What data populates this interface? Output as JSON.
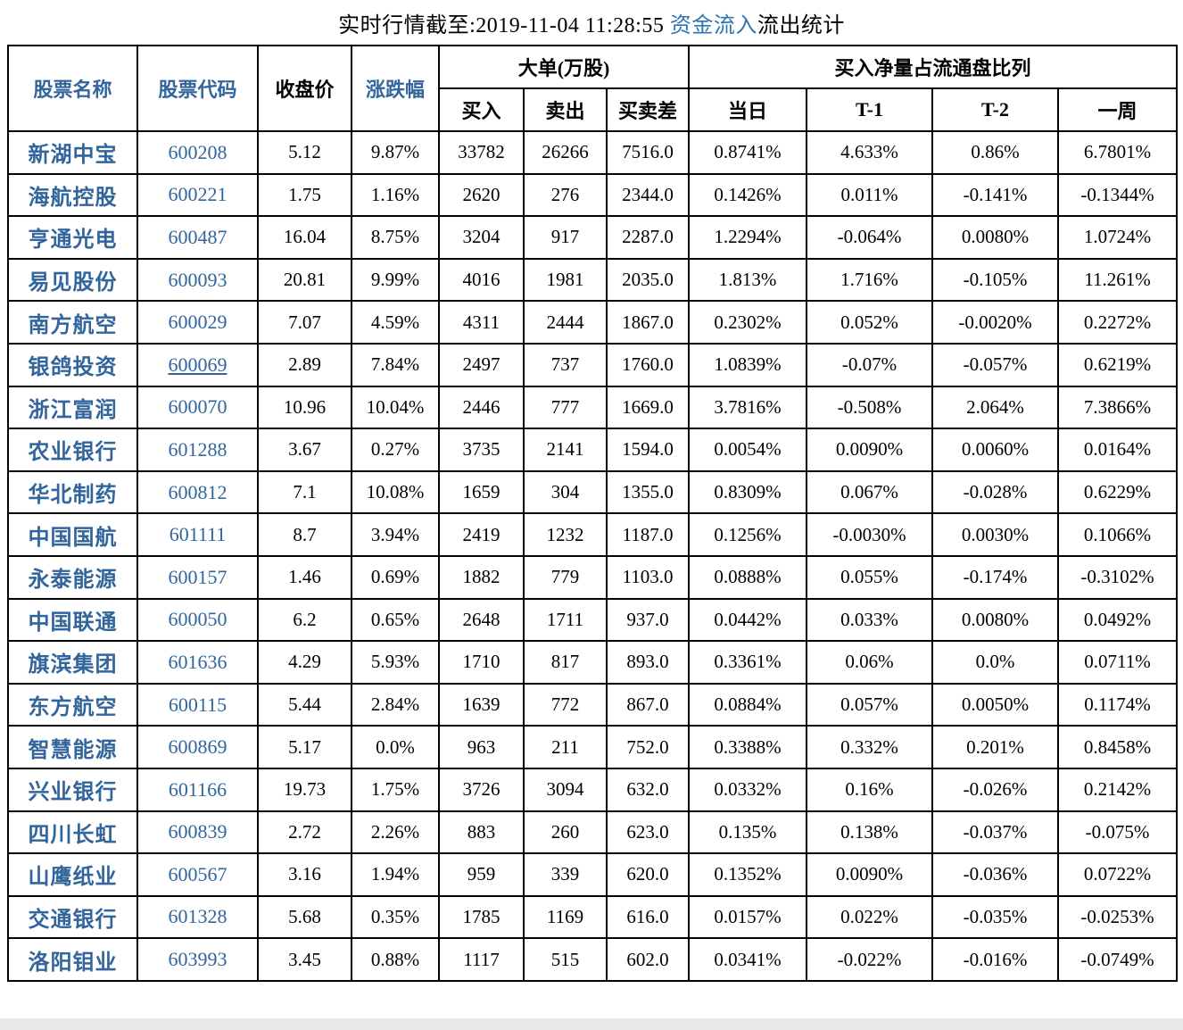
{
  "title": {
    "prefix": "实时行情截至:2019-11-04 11:28:55 ",
    "link": "资金流入",
    "suffix": "流出统计"
  },
  "colors": {
    "table_link_blue": "#31659C",
    "title_link_blue": "#2E74B5",
    "border": "#000000",
    "page_bg": "#ffffff",
    "bottom_strip": "#e9e9e9"
  },
  "table": {
    "headers": {
      "stock_name": "股票名称",
      "stock_code": "股票代码",
      "close_price": "收盘价",
      "change_pct": "涨跌幅",
      "big_order_group": "大单(万股)",
      "buy": "买入",
      "sell": "卖出",
      "diff": "买卖差",
      "net_ratio_group": "买入净量占流通盘比列",
      "today": "当日",
      "t1": "T-1",
      "t2": "T-2",
      "week": "一周"
    },
    "rows": [
      {
        "name": "新湖中宝",
        "code": "600208",
        "close": "5.12",
        "change": "9.87%",
        "buy": "33782",
        "sell": "26266",
        "diff": "7516.0",
        "today": "0.8741%",
        "t1": "4.633%",
        "t2": "0.86%",
        "week": "6.7801%"
      },
      {
        "name": "海航控股",
        "code": "600221",
        "close": "1.75",
        "change": "1.16%",
        "buy": "2620",
        "sell": "276",
        "diff": "2344.0",
        "today": "0.1426%",
        "t1": "0.011%",
        "t2": "-0.141%",
        "week": "-0.1344%"
      },
      {
        "name": "亨通光电",
        "code": "600487",
        "close": "16.04",
        "change": "8.75%",
        "buy": "3204",
        "sell": "917",
        "diff": "2287.0",
        "today": "1.2294%",
        "t1": "-0.064%",
        "t2": "0.0080%",
        "week": "1.0724%"
      },
      {
        "name": "易见股份",
        "code": "600093",
        "close": "20.81",
        "change": "9.99%",
        "buy": "4016",
        "sell": "1981",
        "diff": "2035.0",
        "today": "1.813%",
        "t1": "1.716%",
        "t2": "-0.105%",
        "week": "11.261%"
      },
      {
        "name": "南方航空",
        "code": "600029",
        "close": "7.07",
        "change": "4.59%",
        "buy": "4311",
        "sell": "2444",
        "diff": "1867.0",
        "today": "0.2302%",
        "t1": "0.052%",
        "t2": "-0.0020%",
        "week": "0.2272%"
      },
      {
        "name": "银鸽投资",
        "code": "600069",
        "code_underline": true,
        "close": "2.89",
        "change": "7.84%",
        "buy": "2497",
        "sell": "737",
        "diff": "1760.0",
        "today": "1.0839%",
        "t1": "-0.07%",
        "t2": "-0.057%",
        "week": "0.6219%"
      },
      {
        "name": "浙江富润",
        "code": "600070",
        "close": "10.96",
        "change": "10.04%",
        "buy": "2446",
        "sell": "777",
        "diff": "1669.0",
        "today": "3.7816%",
        "t1": "-0.508%",
        "t2": "2.064%",
        "week": "7.3866%"
      },
      {
        "name": "农业银行",
        "code": "601288",
        "close": "3.67",
        "change": "0.27%",
        "buy": "3735",
        "sell": "2141",
        "diff": "1594.0",
        "today": "0.0054%",
        "t1": "0.0090%",
        "t2": "0.0060%",
        "week": "0.0164%"
      },
      {
        "name": "华北制药",
        "code": "600812",
        "close": "7.1",
        "change": "10.08%",
        "buy": "1659",
        "sell": "304",
        "diff": "1355.0",
        "today": "0.8309%",
        "t1": "0.067%",
        "t2": "-0.028%",
        "week": "0.6229%"
      },
      {
        "name": "中国国航",
        "code": "601111",
        "close": "8.7",
        "change": "3.94%",
        "buy": "2419",
        "sell": "1232",
        "diff": "1187.0",
        "today": "0.1256%",
        "t1": "-0.0030%",
        "t2": "0.0030%",
        "week": "0.1066%"
      },
      {
        "name": "永泰能源",
        "code": "600157",
        "close": "1.46",
        "change": "0.69%",
        "buy": "1882",
        "sell": "779",
        "diff": "1103.0",
        "today": "0.0888%",
        "t1": "0.055%",
        "t2": "-0.174%",
        "week": "-0.3102%"
      },
      {
        "name": "中国联通",
        "code": "600050",
        "close": "6.2",
        "change": "0.65%",
        "buy": "2648",
        "sell": "1711",
        "diff": "937.0",
        "today": "0.0442%",
        "t1": "0.033%",
        "t2": "0.0080%",
        "week": "0.0492%"
      },
      {
        "name": "旗滨集团",
        "code": "601636",
        "close": "4.29",
        "change": "5.93%",
        "buy": "1710",
        "sell": "817",
        "diff": "893.0",
        "today": "0.3361%",
        "t1": "0.06%",
        "t2": "0.0%",
        "week": "0.0711%"
      },
      {
        "name": "东方航空",
        "code": "600115",
        "close": "5.44",
        "change": "2.84%",
        "buy": "1639",
        "sell": "772",
        "diff": "867.0",
        "today": "0.0884%",
        "t1": "0.057%",
        "t2": "0.0050%",
        "week": "0.1174%"
      },
      {
        "name": "智慧能源",
        "code": "600869",
        "close": "5.17",
        "change": "0.0%",
        "buy": "963",
        "sell": "211",
        "diff": "752.0",
        "today": "0.3388%",
        "t1": "0.332%",
        "t2": "0.201%",
        "week": "0.8458%"
      },
      {
        "name": "兴业银行",
        "code": "601166",
        "close": "19.73",
        "change": "1.75%",
        "buy": "3726",
        "sell": "3094",
        "diff": "632.0",
        "today": "0.0332%",
        "t1": "0.16%",
        "t2": "-0.026%",
        "week": "0.2142%"
      },
      {
        "name": "四川长虹",
        "code": "600839",
        "close": "2.72",
        "change": "2.26%",
        "buy": "883",
        "sell": "260",
        "diff": "623.0",
        "today": "0.135%",
        "t1": "0.138%",
        "t2": "-0.037%",
        "week": "-0.075%"
      },
      {
        "name": "山鹰纸业",
        "code": "600567",
        "close": "3.16",
        "change": "1.94%",
        "buy": "959",
        "sell": "339",
        "diff": "620.0",
        "today": "0.1352%",
        "t1": "0.0090%",
        "t2": "-0.036%",
        "week": "0.0722%"
      },
      {
        "name": "交通银行",
        "code": "601328",
        "close": "5.68",
        "change": "0.35%",
        "buy": "1785",
        "sell": "1169",
        "diff": "616.0",
        "today": "0.0157%",
        "t1": "0.022%",
        "t2": "-0.035%",
        "week": "-0.0253%"
      },
      {
        "name": "洛阳钼业",
        "code": "603993",
        "close": "3.45",
        "change": "0.88%",
        "buy": "1117",
        "sell": "515",
        "diff": "602.0",
        "today": "0.0341%",
        "t1": "-0.022%",
        "t2": "-0.016%",
        "week": "-0.0749%"
      }
    ]
  }
}
